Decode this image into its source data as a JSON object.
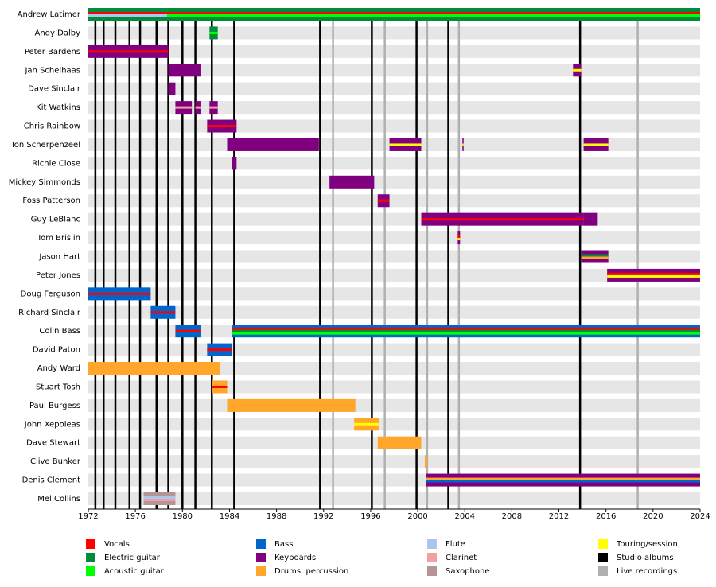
{
  "chart_data": {
    "type": "timeline",
    "xlim": [
      1972,
      2024
    ],
    "xticks": [
      1972,
      1976,
      1980,
      1984,
      1988,
      1992,
      1996,
      2000,
      2004,
      2008,
      2012,
      2016,
      2020,
      2024
    ],
    "legend": [
      {
        "name": "Vocals",
        "color": "#ff0000"
      },
      {
        "name": "Electric guitar",
        "color": "#008c3a"
      },
      {
        "name": "Acoustic guitar",
        "color": "#00ff00"
      },
      {
        "name": "Bass",
        "color": "#0066cc"
      },
      {
        "name": "Keyboards",
        "color": "#800080"
      },
      {
        "name": "Drums, percussion",
        "color": "#ffa62b"
      },
      {
        "name": "Flute",
        "color": "#a8c8f0"
      },
      {
        "name": "Clarinet",
        "color": "#f4a0a0"
      },
      {
        "name": "Saxophone",
        "color": "#b49494"
      },
      {
        "name": "Touring/session",
        "color": "#ffff00"
      },
      {
        "name": "Studio albums",
        "color": "#000000"
      },
      {
        "name": "Live recordings",
        "color": "#b0b0b0"
      }
    ],
    "studio_albums": [
      1972.6,
      1973.3,
      1974.3,
      1975.5,
      1976.4,
      1977.8,
      1978.8,
      1980.0,
      1981.1,
      1982.5,
      1984.4,
      1991.7,
      1996.1,
      1999.9,
      2002.6,
      2013.8
    ],
    "live_recordings": [
      1992.8,
      1997.2,
      2000.8,
      2003.5,
      2018.7
    ],
    "members": [
      {
        "name": "Andrew Latimer",
        "periods": [
          {
            "start": 1972,
            "end": 1978.7,
            "roles": [
              1,
              0,
              6
            ]
          },
          {
            "start": 1978.7,
            "end": 2024,
            "roles": [
              1,
              0,
              2
            ]
          }
        ]
      },
      {
        "name": "Andy Dalby",
        "periods": [
          {
            "start": 1982.3,
            "end": 1983.0,
            "roles": [
              1,
              2
            ]
          }
        ]
      },
      {
        "name": "Peter Bardens",
        "periods": [
          {
            "start": 1972,
            "end": 1978.8,
            "roles": [
              4,
              0
            ]
          }
        ]
      },
      {
        "name": "Jan Schelhaas",
        "periods": [
          {
            "start": 1978.8,
            "end": 1981.6,
            "roles": [
              4
            ]
          },
          {
            "start": 2013.2,
            "end": 2013.9,
            "roles": [
              4,
              9
            ]
          }
        ]
      },
      {
        "name": "Dave Sinclair",
        "periods": [
          {
            "start": 1978.8,
            "end": 1979.4,
            "roles": [
              4
            ]
          }
        ]
      },
      {
        "name": "Kit Watkins",
        "periods": [
          {
            "start": 1979.4,
            "end": 1980.8,
            "roles": [
              4,
              7
            ]
          },
          {
            "start": 1981.1,
            "end": 1981.6,
            "roles": [
              4,
              7
            ]
          },
          {
            "start": 1982.3,
            "end": 1983.0,
            "roles": [
              4,
              7
            ]
          }
        ]
      },
      {
        "name": "Chris Rainbow",
        "periods": [
          {
            "start": 1982.1,
            "end": 1984.6,
            "roles": [
              4,
              0
            ]
          }
        ]
      },
      {
        "name": "Ton Scherpenzeel",
        "periods": [
          {
            "start": 1983.8,
            "end": 1991.6,
            "roles": [
              4
            ]
          },
          {
            "start": 1997.6,
            "end": 2000.3,
            "roles": [
              4,
              9
            ]
          },
          {
            "start": 2003.8,
            "end": 2003.9,
            "roles": [
              4,
              9
            ]
          },
          {
            "start": 2014.1,
            "end": 2016.2,
            "roles": [
              4,
              9
            ]
          }
        ]
      },
      {
        "name": "Richie Close",
        "periods": [
          {
            "start": 1984.2,
            "end": 1984.6,
            "roles": [
              4
            ]
          }
        ]
      },
      {
        "name": "Mickey Simmonds",
        "periods": [
          {
            "start": 1992.5,
            "end": 1996.3,
            "roles": [
              4
            ]
          }
        ]
      },
      {
        "name": "Foss Patterson",
        "periods": [
          {
            "start": 1996.6,
            "end": 1997.6,
            "roles": [
              4,
              0
            ]
          }
        ]
      },
      {
        "name": "Guy LeBlanc",
        "periods": [
          {
            "start": 2000.3,
            "end": 2014.1,
            "roles": [
              4,
              0
            ]
          },
          {
            "start": 2014.1,
            "end": 2015.3,
            "roles": [
              4
            ]
          }
        ]
      },
      {
        "name": "Tom Brislin",
        "periods": [
          {
            "start": 2003.4,
            "end": 2003.6,
            "roles": [
              4,
              0,
              9
            ]
          }
        ]
      },
      {
        "name": "Jason Hart",
        "periods": [
          {
            "start": 2013.9,
            "end": 2016.2,
            "roles": [
              4,
              1,
              5
            ]
          }
        ]
      },
      {
        "name": "Peter Jones",
        "periods": [
          {
            "start": 2016.1,
            "end": 2024,
            "roles": [
              4,
              0,
              9
            ]
          }
        ]
      },
      {
        "name": "Doug Ferguson",
        "periods": [
          {
            "start": 1972,
            "end": 1977.3,
            "roles": [
              3,
              0
            ]
          }
        ]
      },
      {
        "name": "Richard Sinclair",
        "periods": [
          {
            "start": 1977.3,
            "end": 1979.4,
            "roles": [
              3,
              0
            ]
          }
        ]
      },
      {
        "name": "Colin Bass",
        "periods": [
          {
            "start": 1979.4,
            "end": 1981.6,
            "roles": [
              3,
              0
            ]
          },
          {
            "start": 1984.2,
            "end": 2024,
            "roles": [
              3,
              0,
              1,
              2
            ]
          }
        ]
      },
      {
        "name": "David Paton",
        "periods": [
          {
            "start": 1982.1,
            "end": 1984.2,
            "roles": [
              3,
              0
            ]
          }
        ]
      },
      {
        "name": "Andy Ward",
        "periods": [
          {
            "start": 1972,
            "end": 1981.6,
            "roles": [
              5
            ]
          },
          {
            "start": 1981.6,
            "end": 1983.2,
            "roles": [
              5
            ]
          }
        ]
      },
      {
        "name": "Stuart Tosh",
        "periods": [
          {
            "start": 1982.5,
            "end": 1983.8,
            "roles": [
              5,
              0
            ]
          }
        ]
      },
      {
        "name": "Paul Burgess",
        "periods": [
          {
            "start": 1983.8,
            "end": 1994.7,
            "roles": [
              5
            ]
          }
        ]
      },
      {
        "name": "John Xepoleas",
        "periods": [
          {
            "start": 1994.6,
            "end": 1996.7,
            "roles": [
              5,
              9
            ]
          }
        ]
      },
      {
        "name": "Dave Stewart",
        "periods": [
          {
            "start": 1996.6,
            "end": 2000.3,
            "roles": [
              5
            ]
          }
        ]
      },
      {
        "name": "Clive Bunker",
        "periods": [
          {
            "start": 2000.6,
            "end": 2000.8,
            "roles": [
              5
            ]
          }
        ]
      },
      {
        "name": "Denis Clement",
        "periods": [
          {
            "start": 2000.7,
            "end": 2024,
            "roles": [
              4,
              5,
              3
            ]
          }
        ]
      },
      {
        "name": "Mel Collins",
        "periods": [
          {
            "start": 1976.7,
            "end": 1979.4,
            "roles": [
              8,
              6,
              7
            ]
          }
        ]
      }
    ]
  }
}
